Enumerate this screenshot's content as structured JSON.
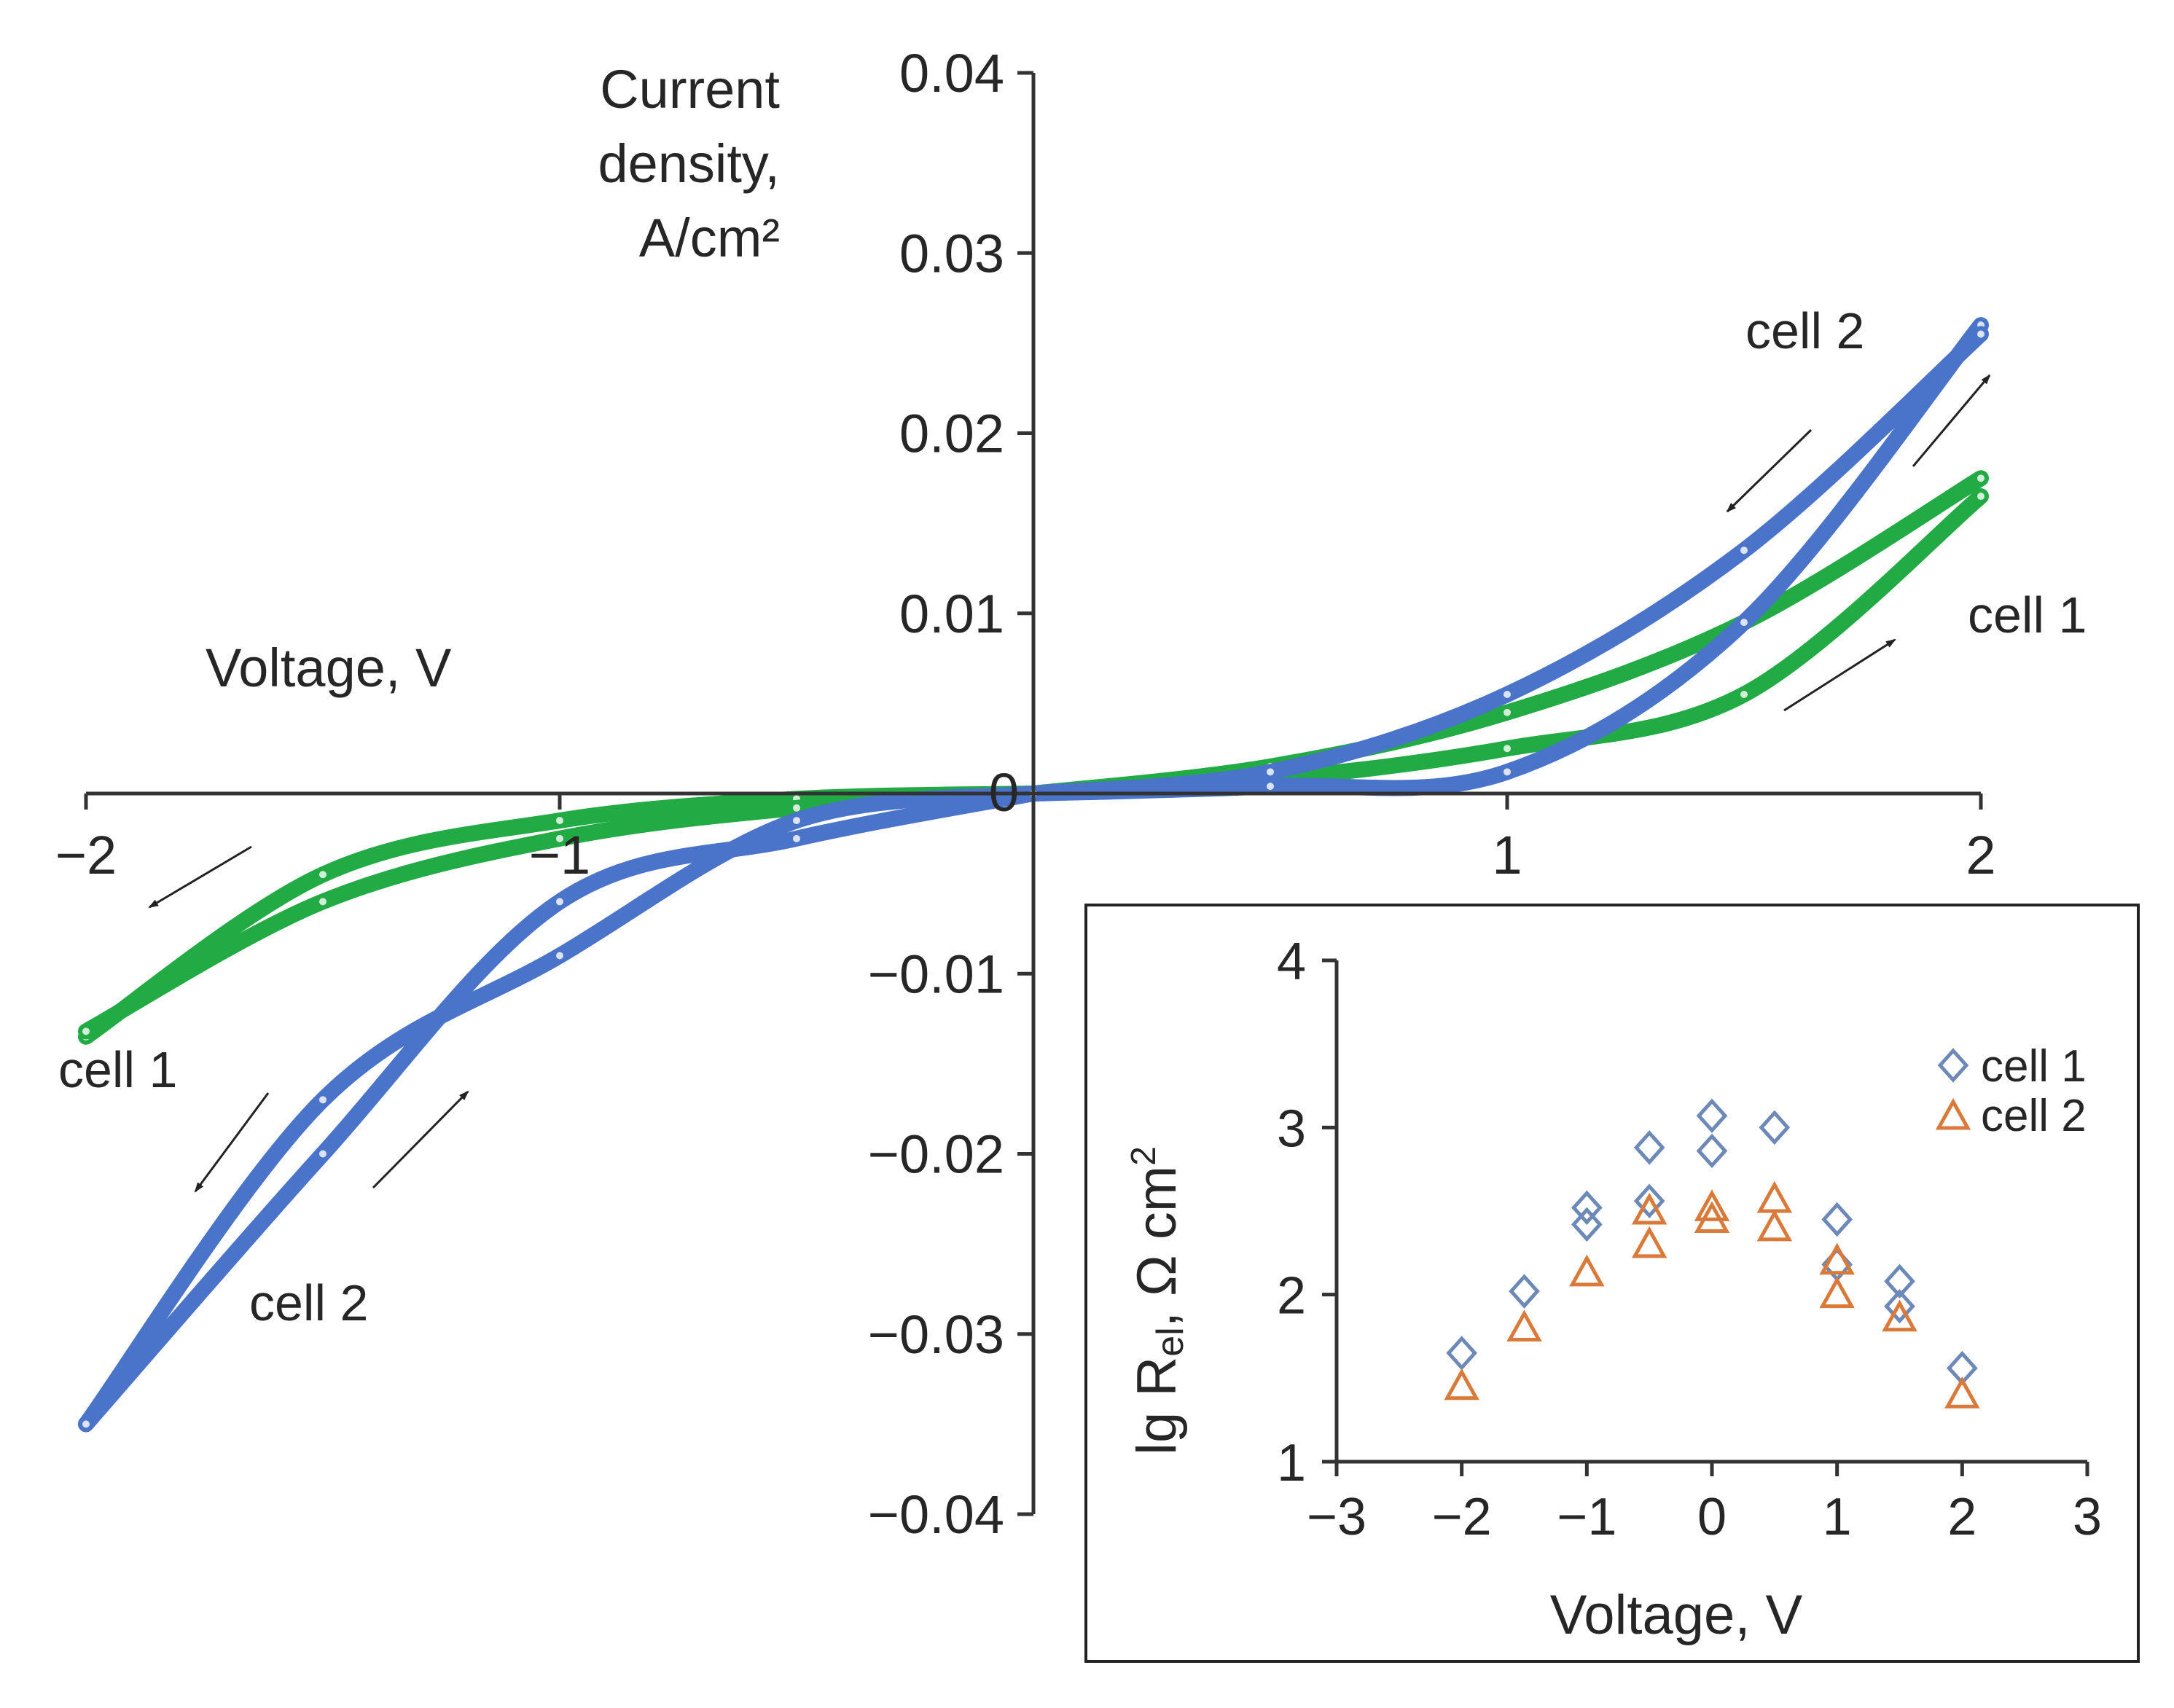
{
  "chart_data": [
    {
      "type": "line",
      "title": "",
      "xlabel": "Voltage, V",
      "ylabel": [
        "Current",
        "density,",
        "A/cm²"
      ],
      "xlim": [
        -2,
        2
      ],
      "ylim": [
        -0.04,
        0.04
      ],
      "xticks": [
        -2,
        -1,
        0,
        1,
        2
      ],
      "xtick_labels": [
        "−2",
        "−1",
        "0",
        "1",
        "2"
      ],
      "yticks": [
        0.04,
        0.03,
        0.02,
        0.01,
        -0.01,
        -0.02,
        -0.03,
        -0.04
      ],
      "ytick_labels": [
        "0.04",
        "0.03",
        "0.02",
        "0.01",
        "−0.01",
        "−0.02",
        "−0.03",
        "−0.04"
      ],
      "series": [
        {
          "name": "cell 1",
          "color": "#22aa44",
          "branches": [
            {
              "x": [
                0,
                0.5,
                1.0,
                1.5,
                2.0
              ],
              "y": [
                0,
                0.0015,
                0.0045,
                0.0095,
                0.0175
              ]
            },
            {
              "x": [
                2.0,
                1.5,
                1.0,
                0.5,
                0
              ],
              "y": [
                0.0165,
                0.0055,
                0.0025,
                0.0008,
                0
              ]
            },
            {
              "x": [
                0,
                -0.5,
                -1.0,
                -1.5,
                -2.0
              ],
              "y": [
                0,
                -0.0003,
                -0.0015,
                -0.0045,
                -0.0135
              ]
            },
            {
              "x": [
                -2.0,
                -1.5,
                -1.0,
                -0.5,
                0
              ],
              "y": [
                -0.0132,
                -0.006,
                -0.0025,
                -0.0008,
                0
              ]
            }
          ]
        },
        {
          "name": "cell 2",
          "color": "#4a74c9",
          "branches": [
            {
              "x": [
                0,
                0.5,
                1.0,
                1.5,
                2.0
              ],
              "y": [
                0,
                0.0004,
                0.0012,
                0.0095,
                0.026
              ]
            },
            {
              "x": [
                2.0,
                1.5,
                1.0,
                0.5,
                0
              ],
              "y": [
                0.0255,
                0.0135,
                0.0055,
                0.0012,
                0
              ]
            },
            {
              "x": [
                0,
                -0.5,
                -1.0,
                -1.5,
                -2.0
              ],
              "y": [
                0,
                -0.0025,
                -0.006,
                -0.02,
                -0.035
              ]
            },
            {
              "x": [
                -2.0,
                -1.5,
                -1.0,
                -0.5,
                0
              ],
              "y": [
                -0.035,
                -0.017,
                -0.009,
                -0.0015,
                0
              ]
            }
          ]
        }
      ],
      "annotations": [
        "cell 2",
        "cell 1",
        "cell 1",
        "cell 2"
      ]
    },
    {
      "type": "scatter",
      "title": "",
      "xlabel": "Voltage, V",
      "ylabel": "lg R el, Ω cm²",
      "ylabel_parts": {
        "main": "lg R",
        "subscript": "el",
        "unit": ", Ω cm",
        "superscript": "2"
      },
      "xlim": [
        -3,
        3
      ],
      "ylim": [
        1,
        4
      ],
      "xticks": [
        -3,
        -2,
        -1,
        0,
        1,
        2,
        3
      ],
      "xtick_labels": [
        "−3",
        "−2",
        "−1",
        "0",
        "1",
        "2",
        "3"
      ],
      "yticks": [
        1,
        2,
        3,
        4
      ],
      "ytick_labels": [
        "1",
        "2",
        "3",
        "4"
      ],
      "series": [
        {
          "name": "cell 1",
          "marker": "diamond",
          "color": "#6d89b8",
          "x": [
            -2,
            -1.5,
            -1,
            -1,
            -0.5,
            -0.5,
            0,
            0,
            0.5,
            1,
            1,
            1.5,
            1.5,
            2
          ],
          "y": [
            1.65,
            2.02,
            2.52,
            2.42,
            2.88,
            2.56,
            3.07,
            2.86,
            3.0,
            2.45,
            2.18,
            2.08,
            1.93,
            1.56
          ]
        },
        {
          "name": "cell 2",
          "marker": "triangle",
          "color": "#d97a3a",
          "x": [
            -2,
            -1.5,
            -1,
            -0.5,
            -0.5,
            0,
            0,
            0.5,
            0.5,
            1,
            1,
            1.5,
            2
          ],
          "y": [
            1.45,
            1.8,
            2.13,
            2.5,
            2.3,
            2.52,
            2.45,
            2.57,
            2.4,
            2.2,
            2.0,
            1.86,
            1.4
          ]
        }
      ],
      "legend": [
        "cell 1",
        "cell 2"
      ],
      "legend_position": "top-right"
    }
  ]
}
